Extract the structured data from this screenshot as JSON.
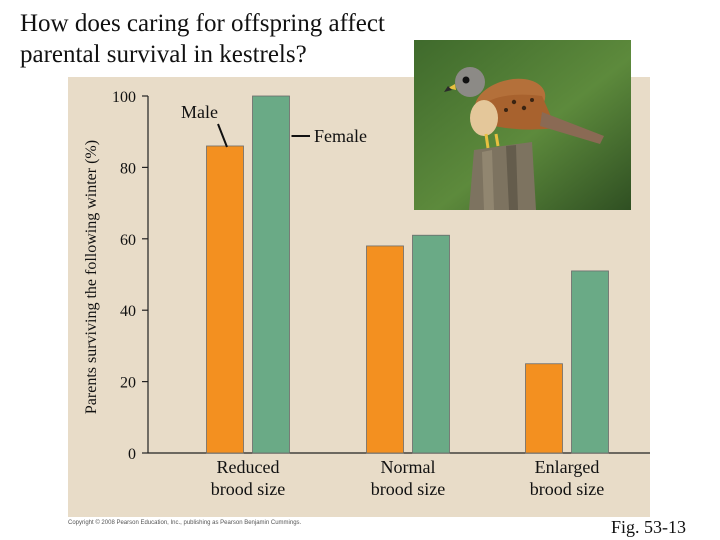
{
  "slide": {
    "title": "How does caring for offspring affect parental survival in kestrels?",
    "figure_ref": "Fig. 53-13",
    "copyright": "Copyright © 2008 Pearson Education, Inc., publishing as Pearson Benjamin Cummings."
  },
  "colors": {
    "male": "#f39020",
    "female": "#6aaa86",
    "panel": "#e8dcc8"
  },
  "photo": {
    "icon": "kestrel-photo"
  },
  "chart_data": {
    "type": "bar",
    "title": "",
    "xlabel": "",
    "ylabel": "Parents surviving the following winter (%)",
    "ylim": [
      0,
      100
    ],
    "yticks": [
      0,
      20,
      40,
      60,
      80,
      100
    ],
    "categories": [
      "Reduced brood size",
      "Normal brood size",
      "Enlarged brood size"
    ],
    "series": [
      {
        "name": "Male",
        "values": [
          86,
          58,
          25
        ]
      },
      {
        "name": "Female",
        "values": [
          100,
          61,
          51
        ]
      }
    ],
    "legend": "inline labels near first group",
    "grid": false
  }
}
